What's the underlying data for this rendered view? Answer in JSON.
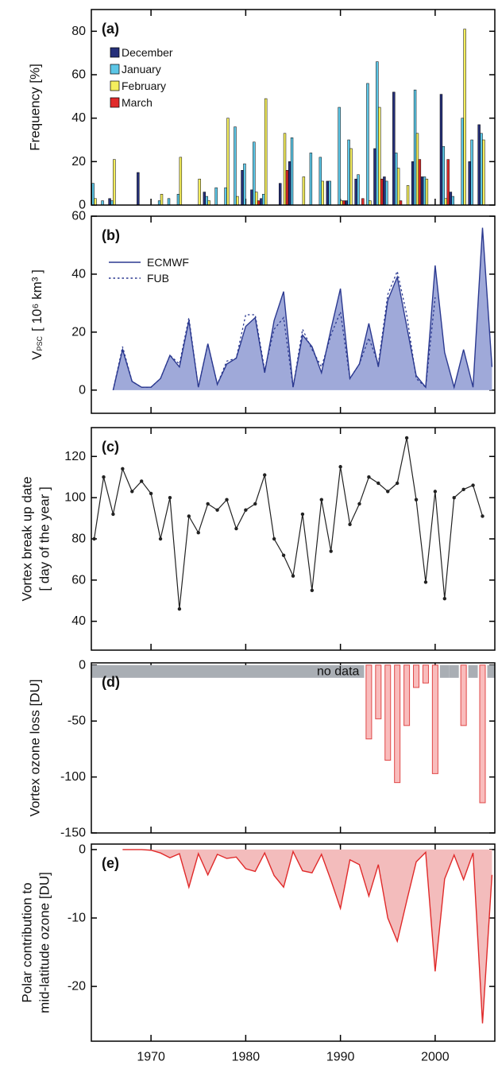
{
  "chart_data": [
    {
      "type": "grouped_bar",
      "label": "(a)",
      "ylabel": "Frequency [%]",
      "x": [
        1964,
        1965,
        1966,
        1967,
        1968,
        1969,
        1970,
        1971,
        1972,
        1973,
        1974,
        1975,
        1976,
        1977,
        1978,
        1979,
        1980,
        1981,
        1982,
        1983,
        1984,
        1985,
        1986,
        1987,
        1988,
        1989,
        1990,
        1991,
        1992,
        1993,
        1994,
        1995,
        1996,
        1997,
        1998,
        1999,
        2000,
        2001,
        2002,
        2003,
        2004,
        2005,
        2006
      ],
      "series": [
        {
          "name": "December",
          "color": "#26307a",
          "values": [
            0,
            0,
            3,
            0,
            0,
            15,
            0,
            0,
            0,
            0,
            0,
            0,
            6,
            0,
            0,
            0,
            16,
            7,
            3,
            0,
            10,
            20,
            0,
            0,
            0,
            11,
            0,
            2,
            12,
            0,
            26,
            13,
            52,
            0,
            20,
            13,
            0,
            51,
            6,
            0,
            20,
            37,
            0
          ]
        },
        {
          "name": "January",
          "color": "#5cc6e6",
          "values": [
            10,
            2,
            2,
            0,
            0,
            0,
            0,
            2,
            3,
            5,
            0,
            0,
            4,
            8,
            8,
            36,
            19,
            29,
            5,
            0,
            0,
            31,
            0,
            24,
            22,
            11,
            45,
            30,
            14,
            56,
            66,
            11,
            24,
            0,
            53,
            13,
            0,
            27,
            4,
            40,
            30,
            33,
            0
          ]
        },
        {
          "name": "February",
          "color": "#f4ee5e",
          "values": [
            3,
            0,
            21,
            0,
            0,
            0,
            0,
            5,
            0,
            22,
            0,
            12,
            2,
            0,
            40,
            4,
            0,
            6,
            49,
            0,
            33,
            0,
            13,
            0,
            11,
            0,
            2,
            26,
            0,
            2,
            45,
            0,
            17,
            9,
            33,
            12,
            0,
            3,
            0,
            81,
            0,
            30,
            0
          ]
        },
        {
          "name": "March",
          "color": "#e02a2a",
          "values": [
            0,
            0,
            0,
            0,
            0,
            0,
            0,
            0,
            0,
            0,
            0,
            0,
            0,
            0,
            0,
            0,
            0,
            2,
            0,
            0,
            16,
            0,
            0,
            0,
            0,
            0,
            2,
            0,
            3,
            0,
            12,
            0,
            2,
            0,
            21,
            0,
            0,
            21,
            0,
            0,
            0,
            0,
            0
          ]
        }
      ],
      "xlim": [
        1963.7,
        2006.3
      ],
      "ylim": [
        0,
        90
      ],
      "yticks": [
        0,
        20,
        40,
        60,
        80
      ],
      "legend": "upper left"
    },
    {
      "type": "area",
      "label": "(b)",
      "ylabel": {
        "symbol": "V",
        "subscript": "PSC",
        "unit": "[ 10⁶ km³ ]"
      },
      "x": [
        1966,
        1967,
        1968,
        1969,
        1970,
        1971,
        1972,
        1973,
        1974,
        1975,
        1976,
        1977,
        1978,
        1979,
        1980,
        1981,
        1982,
        1983,
        1984,
        1985,
        1986,
        1987,
        1988,
        1989,
        1990,
        1991,
        1992,
        1993,
        1994,
        1995,
        1996,
        1997,
        1998,
        1999,
        2000,
        2001,
        2002,
        2003,
        2004,
        2005,
        2006
      ],
      "series": [
        {
          "name": "ECMWF",
          "color": "#2b3990",
          "fill": "#9fa9d9",
          "style": "solid",
          "values": [
            0,
            14,
            3,
            1,
            1,
            4,
            12,
            8,
            24,
            1,
            16,
            2,
            9,
            11,
            22,
            25,
            6,
            24,
            34,
            1,
            19,
            15,
            6,
            21,
            35,
            4,
            9,
            23,
            8,
            31,
            39,
            22,
            5,
            1,
            43,
            13,
            1,
            14,
            1,
            56,
            8
          ]
        },
        {
          "name": "FUB",
          "color": "#2b3990",
          "style": "dotted",
          "values": [
            0,
            15,
            3,
            1,
            1,
            4,
            12,
            9,
            25,
            1,
            16,
            2,
            10,
            11,
            26,
            26,
            7,
            21,
            25,
            1,
            21,
            14,
            8,
            19,
            27,
            4,
            9,
            18,
            9,
            33,
            41,
            26,
            4,
            1,
            32,
            null,
            null,
            null,
            null,
            null,
            null
          ]
        }
      ],
      "xlim": [
        1963.7,
        2006.3
      ],
      "ylim": [
        -8,
        60
      ],
      "yticks": [
        0,
        20,
        40,
        60
      ],
      "legend": "upper left"
    },
    {
      "type": "line",
      "label": "(c)",
      "ylabel": [
        "Vortex break up date",
        "[ day of the year ]"
      ],
      "x": [
        1964,
        1965,
        1966,
        1967,
        1968,
        1969,
        1970,
        1971,
        1972,
        1973,
        1974,
        1975,
        1976,
        1977,
        1978,
        1979,
        1980,
        1981,
        1982,
        1983,
        1984,
        1985,
        1986,
        1987,
        1988,
        1989,
        1990,
        1991,
        1992,
        1993,
        1994,
        1995,
        1996,
        1997,
        1998,
        1999,
        2000,
        2001,
        2002,
        2003,
        2004,
        2005
      ],
      "values": [
        80,
        110,
        92,
        114,
        103,
        108,
        102,
        80,
        100,
        46,
        91,
        83,
        97,
        94,
        99,
        85,
        94,
        97,
        111,
        80,
        72,
        62,
        92,
        55,
        99,
        74,
        115,
        87,
        97,
        110,
        107,
        103,
        107,
        129,
        99,
        59,
        103,
        51,
        100,
        104,
        106,
        91
      ],
      "color": "#222222",
      "xlim": [
        1963.7,
        2006.3
      ],
      "ylim": [
        26,
        134
      ],
      "yticks": [
        40,
        60,
        80,
        100,
        120
      ]
    },
    {
      "type": "bar",
      "label": "(d)",
      "ylabel": "Vortex ozone loss [DU]",
      "x": [
        1993,
        1994,
        1995,
        1996,
        1997,
        1998,
        1999,
        2000,
        2001,
        2002,
        2003,
        2004,
        2005
      ],
      "values": [
        -66,
        -48,
        -85,
        -105,
        -54,
        -20,
        -16,
        -97,
        null,
        null,
        -54,
        null,
        -123
      ],
      "color": "#f9bcbc",
      "edge_color": "#e04848",
      "missing_color": "#a9aeb4",
      "annotation": "no data",
      "xlim": [
        1963.7,
        2006.3
      ],
      "ylim": [
        -150,
        2
      ],
      "yticks": [
        0,
        -50,
        -100,
        -150
      ]
    },
    {
      "type": "area",
      "label": "(e)",
      "ylabel": [
        "Polar contribution to",
        "mid-latitude ozone [DU]"
      ],
      "x": [
        1967,
        1968,
        1969,
        1970,
        1971,
        1972,
        1973,
        1974,
        1975,
        1976,
        1977,
        1978,
        1979,
        1980,
        1981,
        1982,
        1983,
        1984,
        1985,
        1986,
        1987,
        1988,
        1989,
        1990,
        1991,
        1992,
        1993,
        1994,
        1995,
        1996,
        1997,
        1998,
        1999,
        2000,
        2001,
        2002,
        2003,
        2004,
        2005,
        2006
      ],
      "series": [
        {
          "color": "#e02a2a",
          "fill": "#f3bcbc",
          "style": "solid",
          "values": [
            0,
            0,
            0,
            -0.1,
            -0.5,
            -1.2,
            -0.6,
            -5.5,
            -0.6,
            -3.7,
            -0.7,
            -1.3,
            -1.1,
            -2.8,
            -3.2,
            -0.5,
            -3.8,
            -5.5,
            -0.3,
            -3.1,
            -3.4,
            -0.7,
            -4.5,
            -8.6,
            -1.5,
            -2.2,
            -6.8,
            -2.2,
            -10,
            -13.4,
            -7.5,
            -1.8,
            -0.4,
            -17.8,
            -4.3,
            -0.8,
            -4.4,
            -0.5,
            -25.4,
            -3.7
          ]
        }
      ],
      "xlim": [
        1963.7,
        2006.3
      ],
      "ylim": [
        -28,
        0.8
      ],
      "yticks": [
        0,
        -10,
        -20
      ],
      "xticks": [
        1970,
        1980,
        1990,
        2000
      ]
    }
  ]
}
